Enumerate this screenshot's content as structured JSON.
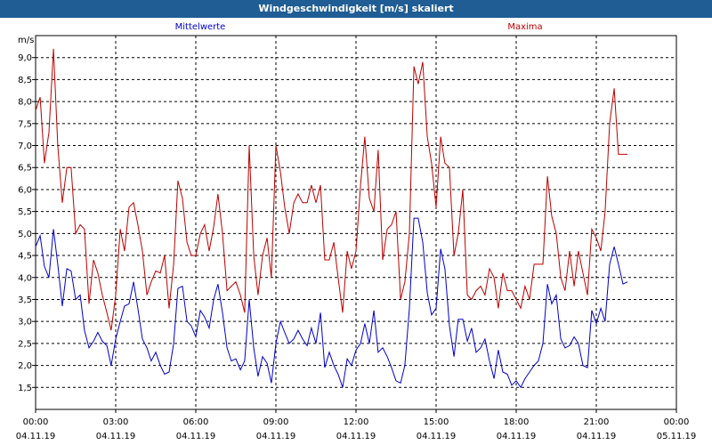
{
  "title": "Windgeschwindigkeit [m/s] skaliert",
  "chart_data": {
    "type": "line",
    "title": "Windgeschwindigkeit [m/s] skaliert",
    "ylabel": "m/s",
    "xlabel": "",
    "ylim": [
      1.0,
      9.5
    ],
    "xlim": [
      0,
      24
    ],
    "grid": true,
    "legend_placement": "top",
    "yticks": [
      "1,5",
      "2,0",
      "2,5",
      "3,0",
      "3,5",
      "4,0",
      "4,5",
      "5,0",
      "5,5",
      "6,0",
      "6,5",
      "7,0",
      "7,5",
      "8,0",
      "8,5",
      "9,0"
    ],
    "ytick_values": [
      1.5,
      2.0,
      2.5,
      3.0,
      3.5,
      4.0,
      4.5,
      5.0,
      5.5,
      6.0,
      6.5,
      7.0,
      7.5,
      8.0,
      8.5,
      9.0
    ],
    "xticks": [
      {
        "time": "00:00",
        "date": "04.11.19",
        "hour": 0
      },
      {
        "time": "03:00",
        "date": "04.11.19",
        "hour": 3
      },
      {
        "time": "06:00",
        "date": "04.11.19",
        "hour": 6
      },
      {
        "time": "09:00",
        "date": "04.11.19",
        "hour": 9
      },
      {
        "time": "12:00",
        "date": "04.11.19",
        "hour": 12
      },
      {
        "time": "15:00",
        "date": "04.11.19",
        "hour": 15
      },
      {
        "time": "18:00",
        "date": "04.11.19",
        "hour": 18
      },
      {
        "time": "21:00",
        "date": "04.11.19",
        "hour": 21
      },
      {
        "time": "00:00",
        "date": "05.11.19",
        "hour": 24
      }
    ],
    "series": [
      {
        "name": "Mittelwerte",
        "color": "#0000cc",
        "points": [
          [
            0.0,
            4.7
          ],
          [
            0.17,
            4.95
          ],
          [
            0.33,
            4.25
          ],
          [
            0.5,
            4.0
          ],
          [
            0.67,
            5.1
          ],
          [
            0.83,
            4.3
          ],
          [
            1.0,
            3.35
          ],
          [
            1.17,
            4.2
          ],
          [
            1.33,
            4.15
          ],
          [
            1.5,
            3.5
          ],
          [
            1.67,
            3.6
          ],
          [
            1.83,
            2.8
          ],
          [
            2.0,
            2.4
          ],
          [
            2.17,
            2.55
          ],
          [
            2.33,
            2.75
          ],
          [
            2.5,
            2.55
          ],
          [
            2.67,
            2.45
          ],
          [
            2.83,
            2.0
          ],
          [
            3.0,
            2.6
          ],
          [
            3.17,
            3.0
          ],
          [
            3.33,
            3.35
          ],
          [
            3.5,
            3.4
          ],
          [
            3.67,
            3.9
          ],
          [
            3.83,
            3.3
          ],
          [
            4.0,
            2.6
          ],
          [
            4.17,
            2.4
          ],
          [
            4.33,
            2.1
          ],
          [
            4.5,
            2.3
          ],
          [
            4.67,
            2.0
          ],
          [
            4.83,
            1.8
          ],
          [
            5.0,
            1.85
          ],
          [
            5.17,
            2.5
          ],
          [
            5.33,
            3.75
          ],
          [
            5.5,
            3.8
          ],
          [
            5.67,
            3.0
          ],
          [
            5.83,
            2.9
          ],
          [
            6.0,
            2.65
          ],
          [
            6.17,
            3.25
          ],
          [
            6.33,
            3.1
          ],
          [
            6.5,
            2.85
          ],
          [
            6.67,
            3.5
          ],
          [
            6.83,
            3.85
          ],
          [
            7.0,
            3.2
          ],
          [
            7.17,
            2.4
          ],
          [
            7.33,
            2.1
          ],
          [
            7.5,
            2.15
          ],
          [
            7.67,
            1.9
          ],
          [
            7.83,
            2.1
          ],
          [
            8.0,
            3.5
          ],
          [
            8.17,
            2.4
          ],
          [
            8.33,
            1.75
          ],
          [
            8.5,
            2.2
          ],
          [
            8.67,
            2.05
          ],
          [
            8.83,
            1.6
          ],
          [
            9.0,
            2.5
          ],
          [
            9.17,
            3.0
          ],
          [
            9.33,
            2.75
          ],
          [
            9.5,
            2.5
          ],
          [
            9.67,
            2.6
          ],
          [
            9.83,
            2.8
          ],
          [
            10.0,
            2.6
          ],
          [
            10.17,
            2.45
          ],
          [
            10.33,
            2.85
          ],
          [
            10.5,
            2.5
          ],
          [
            10.67,
            3.2
          ],
          [
            10.83,
            1.95
          ],
          [
            11.0,
            2.3
          ],
          [
            11.17,
            2.0
          ],
          [
            11.33,
            1.8
          ],
          [
            11.5,
            1.5
          ],
          [
            11.67,
            2.15
          ],
          [
            11.83,
            2.0
          ],
          [
            12.0,
            2.35
          ],
          [
            12.17,
            2.5
          ],
          [
            12.33,
            2.95
          ],
          [
            12.5,
            2.5
          ],
          [
            12.67,
            3.25
          ],
          [
            12.83,
            2.3
          ],
          [
            13.0,
            2.4
          ],
          [
            13.17,
            2.2
          ],
          [
            13.33,
            1.95
          ],
          [
            13.5,
            1.65
          ],
          [
            13.67,
            1.6
          ],
          [
            13.83,
            2.0
          ],
          [
            14.0,
            3.3
          ],
          [
            14.17,
            5.35
          ],
          [
            14.33,
            5.35
          ],
          [
            14.5,
            4.8
          ],
          [
            14.67,
            3.65
          ],
          [
            14.83,
            3.15
          ],
          [
            15.0,
            3.3
          ],
          [
            15.17,
            4.65
          ],
          [
            15.33,
            4.2
          ],
          [
            15.5,
            2.9
          ],
          [
            15.67,
            2.2
          ],
          [
            15.83,
            3.05
          ],
          [
            16.0,
            3.05
          ],
          [
            16.17,
            2.55
          ],
          [
            16.33,
            2.85
          ],
          [
            16.5,
            2.3
          ],
          [
            16.67,
            2.4
          ],
          [
            16.83,
            2.6
          ],
          [
            17.0,
            2.1
          ],
          [
            17.17,
            1.7
          ],
          [
            17.33,
            2.35
          ],
          [
            17.5,
            1.85
          ],
          [
            17.67,
            1.8
          ],
          [
            17.83,
            1.55
          ],
          [
            18.0,
            1.65
          ],
          [
            18.17,
            1.5
          ],
          [
            18.33,
            1.7
          ],
          [
            18.5,
            1.85
          ],
          [
            18.67,
            2.0
          ],
          [
            18.83,
            2.1
          ],
          [
            19.0,
            2.5
          ],
          [
            19.17,
            3.85
          ],
          [
            19.33,
            3.4
          ],
          [
            19.5,
            3.6
          ],
          [
            19.67,
            2.6
          ],
          [
            19.83,
            2.4
          ],
          [
            20.0,
            2.45
          ],
          [
            20.17,
            2.65
          ],
          [
            20.33,
            2.5
          ],
          [
            20.5,
            2.0
          ],
          [
            20.67,
            1.95
          ],
          [
            20.83,
            3.25
          ],
          [
            21.0,
            2.95
          ],
          [
            21.17,
            3.3
          ],
          [
            21.33,
            3.0
          ],
          [
            21.5,
            4.3
          ],
          [
            21.67,
            4.7
          ],
          [
            21.83,
            4.3
          ],
          [
            22.0,
            3.85
          ],
          [
            22.17,
            3.9
          ]
        ]
      },
      {
        "name": "Maxima",
        "color": "#bb0000",
        "points": [
          [
            0.0,
            7.8
          ],
          [
            0.17,
            8.1
          ],
          [
            0.33,
            6.6
          ],
          [
            0.5,
            7.3
          ],
          [
            0.67,
            9.2
          ],
          [
            0.83,
            7.0
          ],
          [
            1.0,
            5.7
          ],
          [
            1.17,
            6.5
          ],
          [
            1.33,
            6.5
          ],
          [
            1.5,
            5.0
          ],
          [
            1.67,
            5.2
          ],
          [
            1.83,
            5.1
          ],
          [
            2.0,
            3.4
          ],
          [
            2.17,
            4.4
          ],
          [
            2.33,
            4.1
          ],
          [
            2.5,
            3.6
          ],
          [
            2.67,
            3.2
          ],
          [
            2.83,
            2.8
          ],
          [
            3.0,
            3.6
          ],
          [
            3.17,
            5.1
          ],
          [
            3.33,
            4.6
          ],
          [
            3.5,
            5.6
          ],
          [
            3.67,
            5.7
          ],
          [
            3.83,
            5.2
          ],
          [
            4.0,
            4.6
          ],
          [
            4.17,
            3.6
          ],
          [
            4.33,
            3.9
          ],
          [
            4.5,
            4.15
          ],
          [
            4.67,
            4.1
          ],
          [
            4.83,
            4.5
          ],
          [
            5.0,
            3.3
          ],
          [
            5.17,
            4.3
          ],
          [
            5.33,
            6.2
          ],
          [
            5.5,
            5.8
          ],
          [
            5.67,
            4.8
          ],
          [
            5.83,
            4.5
          ],
          [
            6.0,
            4.5
          ],
          [
            6.17,
            5.0
          ],
          [
            6.33,
            5.2
          ],
          [
            6.5,
            4.6
          ],
          [
            6.67,
            5.15
          ],
          [
            6.83,
            5.9
          ],
          [
            7.0,
            5.0
          ],
          [
            7.17,
            3.7
          ],
          [
            7.33,
            3.8
          ],
          [
            7.5,
            3.9
          ],
          [
            7.67,
            3.6
          ],
          [
            7.83,
            3.2
          ],
          [
            8.0,
            7.0
          ],
          [
            8.17,
            4.5
          ],
          [
            8.33,
            3.6
          ],
          [
            8.5,
            4.5
          ],
          [
            8.67,
            4.9
          ],
          [
            8.83,
            4.0
          ],
          [
            9.0,
            7.0
          ],
          [
            9.17,
            6.4
          ],
          [
            9.33,
            5.6
          ],
          [
            9.5,
            5.0
          ],
          [
            9.67,
            5.7
          ],
          [
            9.83,
            5.9
          ],
          [
            10.0,
            5.7
          ],
          [
            10.17,
            5.7
          ],
          [
            10.33,
            6.1
          ],
          [
            10.5,
            5.7
          ],
          [
            10.67,
            6.1
          ],
          [
            10.83,
            4.4
          ],
          [
            11.0,
            4.4
          ],
          [
            11.17,
            4.8
          ],
          [
            11.33,
            4.0
          ],
          [
            11.5,
            3.2
          ],
          [
            11.67,
            4.6
          ],
          [
            11.83,
            4.2
          ],
          [
            12.0,
            4.6
          ],
          [
            12.17,
            6.1
          ],
          [
            12.33,
            7.2
          ],
          [
            12.5,
            5.8
          ],
          [
            12.67,
            5.5
          ],
          [
            12.83,
            6.9
          ],
          [
            13.0,
            4.4
          ],
          [
            13.17,
            5.1
          ],
          [
            13.33,
            5.2
          ],
          [
            13.5,
            5.5
          ],
          [
            13.67,
            3.5
          ],
          [
            13.83,
            3.9
          ],
          [
            14.0,
            5.0
          ],
          [
            14.17,
            8.8
          ],
          [
            14.33,
            8.4
          ],
          [
            14.5,
            8.9
          ],
          [
            14.67,
            7.2
          ],
          [
            14.83,
            6.6
          ],
          [
            15.0,
            5.6
          ],
          [
            15.17,
            7.2
          ],
          [
            15.33,
            6.6
          ],
          [
            15.5,
            6.5
          ],
          [
            15.67,
            4.5
          ],
          [
            15.83,
            5.0
          ],
          [
            16.0,
            6.0
          ],
          [
            16.17,
            3.6
          ],
          [
            16.33,
            3.5
          ],
          [
            16.5,
            3.7
          ],
          [
            16.67,
            3.8
          ],
          [
            16.83,
            3.6
          ],
          [
            17.0,
            4.2
          ],
          [
            17.17,
            4.0
          ],
          [
            17.33,
            3.3
          ],
          [
            17.5,
            4.1
          ],
          [
            17.67,
            3.7
          ],
          [
            17.83,
            3.7
          ],
          [
            18.0,
            3.5
          ],
          [
            18.17,
            3.3
          ],
          [
            18.33,
            3.8
          ],
          [
            18.5,
            3.5
          ],
          [
            18.67,
            4.3
          ],
          [
            18.83,
            4.3
          ],
          [
            19.0,
            4.3
          ],
          [
            19.17,
            6.3
          ],
          [
            19.33,
            5.4
          ],
          [
            19.5,
            5.0
          ],
          [
            19.67,
            4.0
          ],
          [
            19.83,
            3.7
          ],
          [
            20.0,
            4.6
          ],
          [
            20.17,
            3.8
          ],
          [
            20.33,
            4.6
          ],
          [
            20.5,
            4.1
          ],
          [
            20.67,
            3.6
          ],
          [
            20.83,
            5.1
          ],
          [
            21.0,
            4.9
          ],
          [
            21.17,
            4.6
          ],
          [
            21.33,
            5.5
          ],
          [
            21.5,
            7.5
          ],
          [
            21.67,
            8.3
          ],
          [
            21.83,
            6.8
          ],
          [
            22.0,
            6.8
          ],
          [
            22.17,
            6.8
          ]
        ]
      }
    ]
  }
}
